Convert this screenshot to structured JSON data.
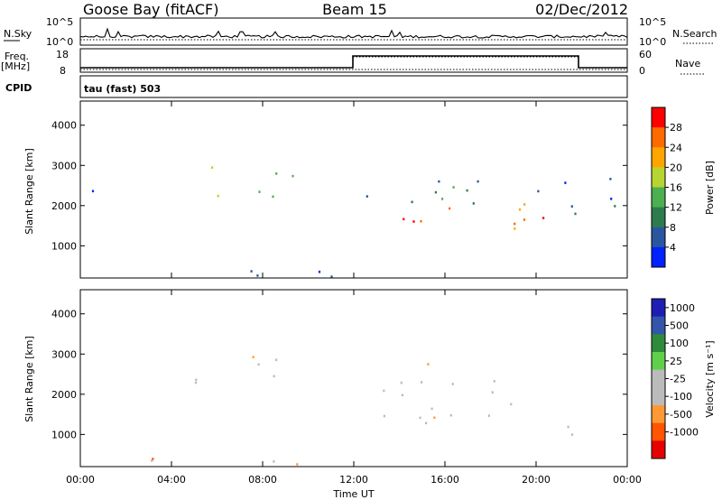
{
  "header": {
    "station": "Goose Bay (fitACF)",
    "beam": "Beam 15",
    "date": "02/Dec/2012"
  },
  "noise_panel": {
    "left_label": "N.Sky",
    "left_ticks": [
      "10^5",
      "10^0"
    ],
    "right_label": "N.Search",
    "right_ticks": [
      "10^5",
      "10^0"
    ]
  },
  "freq_panel": {
    "left_label_1": "Freq.",
    "left_label_2": "[MHz]",
    "left_ticks": [
      "18",
      "8"
    ],
    "right_label": "Nave",
    "right_ticks": [
      "60",
      "0"
    ]
  },
  "cpid_panel": {
    "left_label": "CPID",
    "value": "tau (fast) 503"
  },
  "colors": {
    "power_scale": [
      "#0022ff",
      "#2a56a0",
      "#2e7b4e",
      "#4caf50",
      "#b8d432",
      "#ffa500",
      "#ff6a00",
      "#ff0000"
    ],
    "velocity_scale": [
      "#e60000",
      "#ff5500",
      "#ff9933",
      "#bbbbbb",
      "#bbbbbb",
      "#5fd04a",
      "#2e8b3a",
      "#3355aa",
      "#1e1eb4"
    ]
  },
  "chart_data": [
    {
      "type": "heatmap",
      "name": "power-panel",
      "ylabel": "Slant Range [km]",
      "yticks": [
        1000,
        2000,
        3000,
        4000
      ],
      "ylim": [
        200,
        4600
      ],
      "xticks": [
        "00:00",
        "04:00",
        "08:00",
        "12:00",
        "16:00",
        "20:00",
        "00:00"
      ],
      "xlim_hours": [
        0,
        24
      ],
      "colorbar": {
        "label": "Power [dB]",
        "ticks": [
          "4",
          "8",
          "12",
          "16",
          "20",
          "24",
          "28"
        ]
      },
      "regions": [
        {
          "t0": 5.0,
          "t1": 9.3,
          "r0": 2050,
          "r1": 3100,
          "level": 3
        },
        {
          "t0": 12.3,
          "t1": 20.5,
          "r0": 1300,
          "r1": 2200,
          "level": 6
        },
        {
          "t0": 12.5,
          "t1": 20.5,
          "r0": 2000,
          "r1": 2900,
          "level": 2
        },
        {
          "t0": 0.3,
          "t1": 11.5,
          "r0": 200,
          "r1": 500,
          "level": 1
        },
        {
          "t0": 21.0,
          "t1": 23.8,
          "r0": 1100,
          "r1": 2700,
          "level": 1
        },
        {
          "t0": 0.2,
          "t1": 1.2,
          "r0": 1700,
          "r1": 2500,
          "level": 0
        }
      ]
    },
    {
      "type": "heatmap",
      "name": "velocity-panel",
      "ylabel": "Slant Range [km]",
      "yticks": [
        1000,
        2000,
        3000,
        4000
      ],
      "ylim": [
        200,
        4600
      ],
      "xticks": [
        "00:00",
        "04:00",
        "08:00",
        "12:00",
        "16:00",
        "20:00",
        "00:00"
      ],
      "xlabel": "Time UT",
      "xlim_hours": [
        0,
        24
      ],
      "colorbar": {
        "label": "Velocity [m s⁻¹]",
        "ticks": [
          "1000",
          "500",
          "100",
          "25",
          "-25",
          "-100",
          "-500",
          "-1000"
        ]
      },
      "regions": [
        {
          "t0": 5.0,
          "t1": 9.3,
          "r0": 2050,
          "r1": 3100,
          "level": 3
        },
        {
          "t0": 12.3,
          "t1": 20.5,
          "r0": 1300,
          "r1": 2800,
          "level": 3
        },
        {
          "t0": 0.3,
          "t1": 11.5,
          "r0": 200,
          "r1": 500,
          "level": 2
        },
        {
          "t0": 20.0,
          "t1": 22.0,
          "r0": 1000,
          "r1": 1800,
          "level": 5
        }
      ]
    }
  ]
}
